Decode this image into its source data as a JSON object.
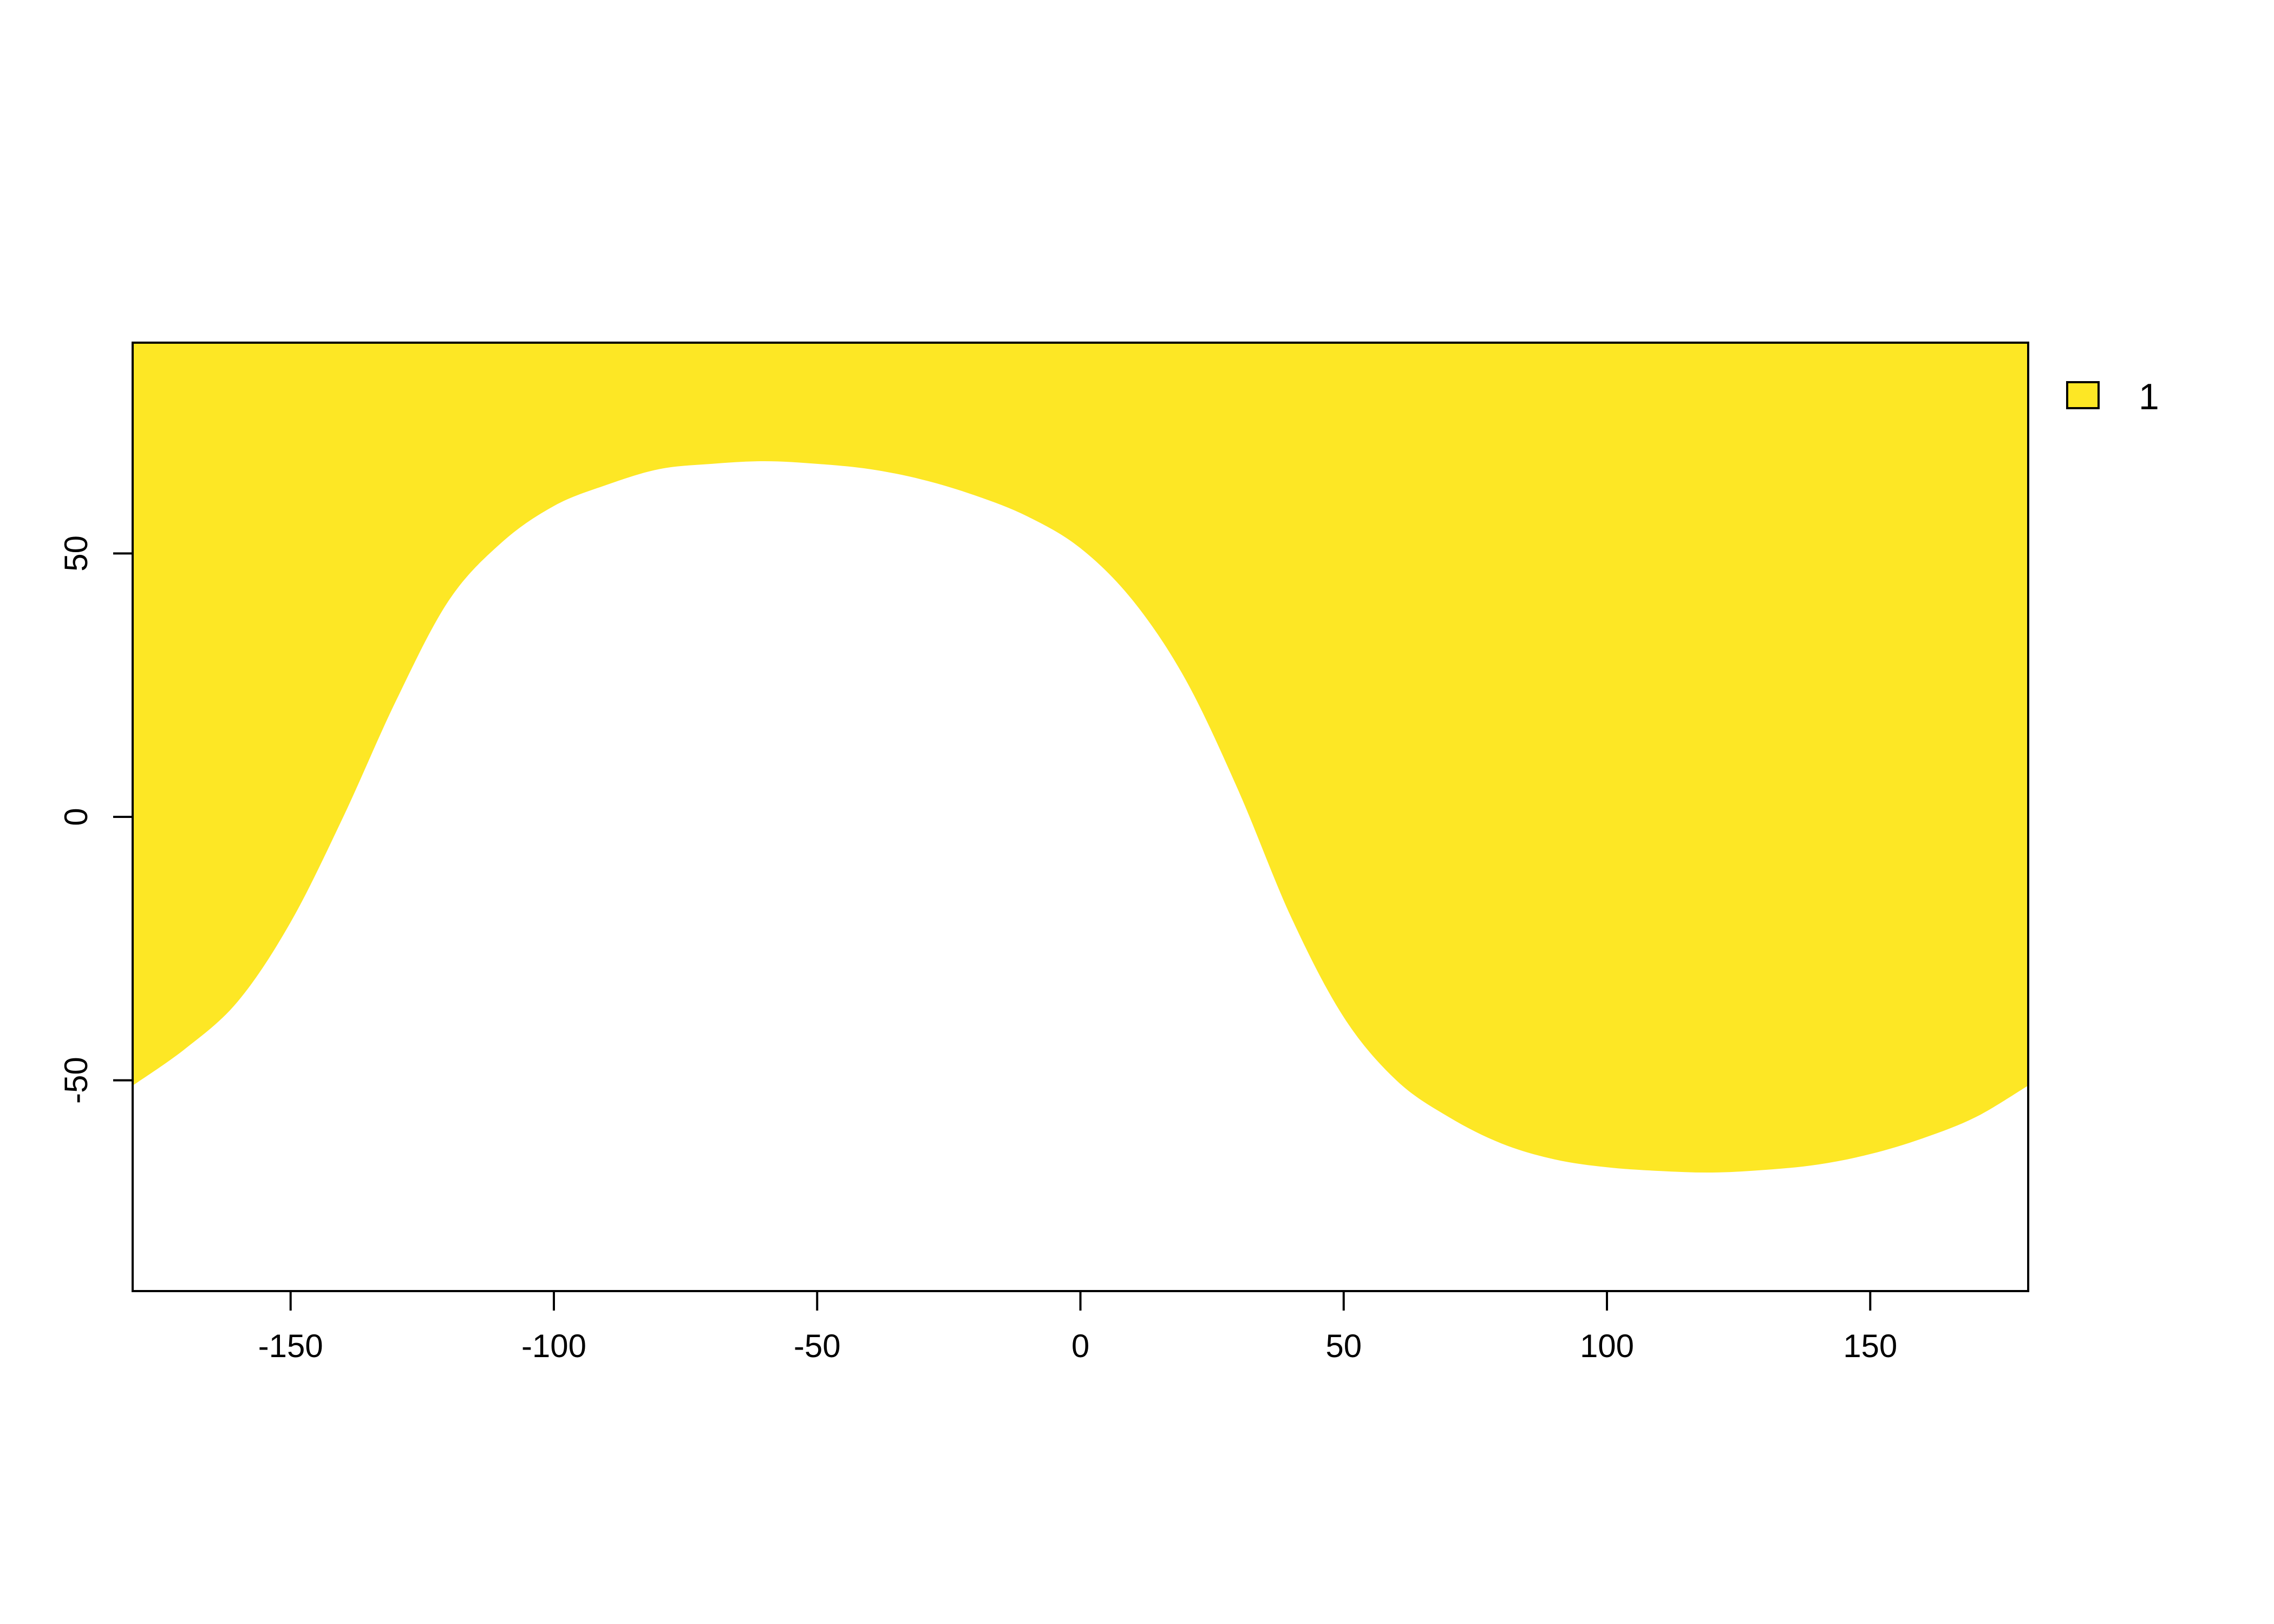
{
  "chart_data": {
    "type": "heatmap",
    "title": "",
    "xlabel": "",
    "ylabel": "",
    "xlim": [
      -180,
      180
    ],
    "ylim": [
      -90,
      90
    ],
    "x_ticks": [
      -150,
      -100,
      -50,
      0,
      50,
      100,
      150
    ],
    "y_ticks": [
      -50,
      0,
      50
    ],
    "grid": false,
    "legend": {
      "position": "right",
      "entries": [
        {
          "label": "1",
          "color": "#FDE725"
        }
      ]
    },
    "fill_color": "#FDE725",
    "region": {
      "value": 1,
      "description_of_boundary": "lower boundary latitude of the filled region by longitude; region spans from this boundary up to the top axis",
      "boundary": [
        {
          "lon": -180,
          "lat": -51
        },
        {
          "lon": -170,
          "lat": -44
        },
        {
          "lon": -160,
          "lat": -35
        },
        {
          "lon": -150,
          "lat": -20
        },
        {
          "lon": -140,
          "lat": 0
        },
        {
          "lon": -130,
          "lat": 22
        },
        {
          "lon": -120,
          "lat": 41
        },
        {
          "lon": -110,
          "lat": 52
        },
        {
          "lon": -100,
          "lat": 59
        },
        {
          "lon": -90,
          "lat": 63
        },
        {
          "lon": -80,
          "lat": 66
        },
        {
          "lon": -70,
          "lat": 67
        },
        {
          "lon": -60,
          "lat": 67.5
        },
        {
          "lon": -50,
          "lat": 67
        },
        {
          "lon": -40,
          "lat": 66
        },
        {
          "lon": -30,
          "lat": 64
        },
        {
          "lon": -20,
          "lat": 61
        },
        {
          "lon": -10,
          "lat": 57
        },
        {
          "lon": 0,
          "lat": 51
        },
        {
          "lon": 10,
          "lat": 41
        },
        {
          "lon": 20,
          "lat": 26
        },
        {
          "lon": 30,
          "lat": 5
        },
        {
          "lon": 40,
          "lat": -19
        },
        {
          "lon": 50,
          "lat": -38
        },
        {
          "lon": 60,
          "lat": -50
        },
        {
          "lon": 70,
          "lat": -57
        },
        {
          "lon": 80,
          "lat": -62
        },
        {
          "lon": 90,
          "lat": -65
        },
        {
          "lon": 100,
          "lat": -66.5
        },
        {
          "lon": 110,
          "lat": -67.2
        },
        {
          "lon": 120,
          "lat": -67.5
        },
        {
          "lon": 130,
          "lat": -67
        },
        {
          "lon": 140,
          "lat": -66
        },
        {
          "lon": 150,
          "lat": -64
        },
        {
          "lon": 160,
          "lat": -61
        },
        {
          "lon": 170,
          "lat": -57
        },
        {
          "lon": 180,
          "lat": -51
        }
      ]
    }
  }
}
